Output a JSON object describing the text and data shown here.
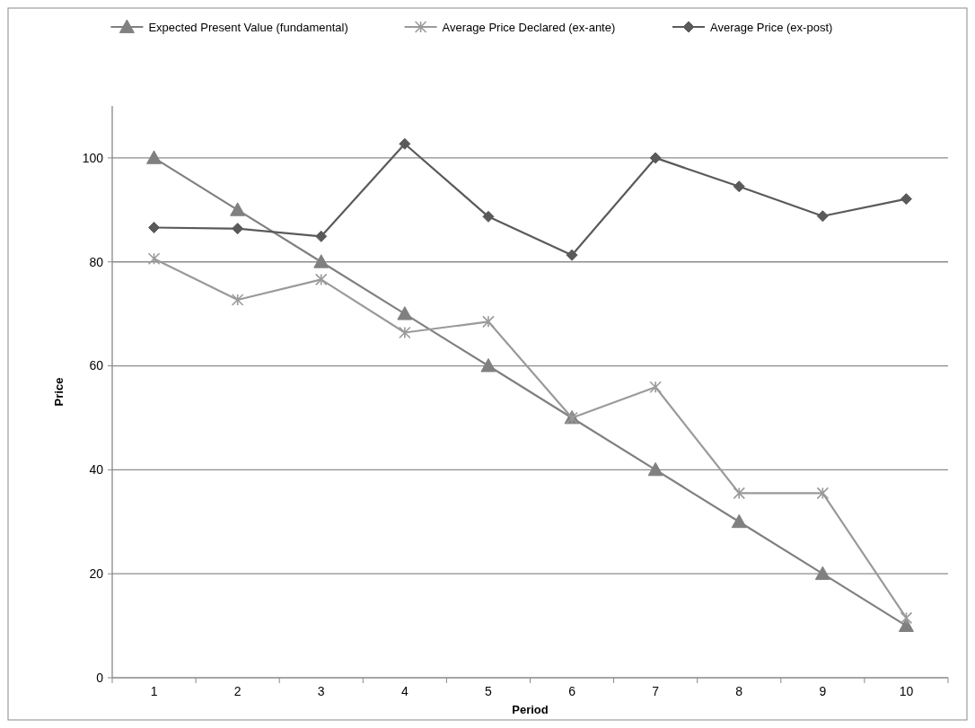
{
  "chart_data": {
    "type": "line",
    "xlabel": "Period",
    "ylabel": "Price",
    "categories": [
      "1",
      "2",
      "3",
      "4",
      "5",
      "6",
      "7",
      "8",
      "9",
      "10"
    ],
    "series": [
      {
        "name": "Expected Present Value (fundamental)",
        "color": "#808080",
        "marker": "triangle",
        "values": [
          100,
          90,
          80,
          70,
          60,
          50,
          40,
          30,
          20,
          10
        ]
      },
      {
        "name": "Average Price Declared (ex-ante)",
        "color": "#9a9a9a",
        "marker": "cross",
        "values": [
          80.6,
          72.7,
          76.6,
          66.4,
          68.5,
          50,
          55.9,
          35.5,
          35.5,
          11.5
        ]
      },
      {
        "name": "Average Price (ex-post)",
        "color": "#5a5a5a",
        "marker": "diamond",
        "values": [
          86.6,
          86.4,
          84.9,
          102.7,
          88.7,
          81.3,
          100,
          94.5,
          88.8,
          92.1
        ]
      }
    ],
    "ylim": [
      0,
      110
    ],
    "yticks": [
      0,
      20,
      40,
      60,
      80,
      100
    ],
    "grid": "y",
    "legend": "top",
    "line_style": "solid"
  }
}
